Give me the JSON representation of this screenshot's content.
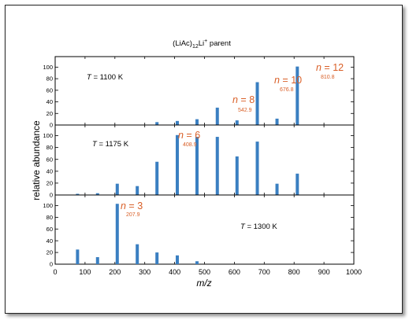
{
  "chart_data": {
    "type": "bar",
    "title": "(LiAc)12Li+ parent",
    "title_parts": {
      "base": "(LiAc)",
      "sub": "12",
      "mid": "Li",
      "sup": "+",
      "tail": " parent"
    },
    "xlabel": "m/z",
    "ylabel": "relative abundance",
    "xlim": [
      0,
      1000
    ],
    "xticks": [
      0,
      100,
      200,
      300,
      400,
      500,
      600,
      700,
      800,
      900,
      1000
    ],
    "ylim": [
      0,
      110
    ],
    "yticks": [
      0,
      20,
      40,
      60,
      80,
      100
    ],
    "bar_color": "#3a7fc1",
    "annotation_color": "#d95f27",
    "panels": [
      {
        "name": "T = 1100 K",
        "temp_var": "T",
        "temp_text": " = 1100 K",
        "x": [
          74.9,
          141.9,
          207.9,
          274.9,
          340.9,
          408.9,
          474.9,
          542.9,
          608.9,
          676.8,
          742.8,
          810.8
        ],
        "values": [
          0,
          0,
          0,
          0,
          5,
          7,
          10,
          30,
          8,
          74,
          11,
          101
        ],
        "annotations": [
          {
            "n": "n = 8",
            "mass": "542.9",
            "x": 542.9
          },
          {
            "n": "n = 10",
            "mass": "676.8",
            "x": 676.8
          },
          {
            "n": "n = 12",
            "mass": "810.8",
            "x": 810.8
          }
        ]
      },
      {
        "name": "T = 1175 K",
        "temp_var": "T",
        "temp_text": " = 1175 K",
        "x": [
          74.9,
          141.9,
          207.9,
          274.9,
          340.9,
          408.9,
          474.9,
          542.9,
          608.9,
          676.8,
          742.8,
          810.8
        ],
        "values": [
          2,
          3,
          19,
          15,
          56,
          101,
          98,
          98,
          65,
          90,
          19,
          36
        ],
        "annotations": [
          {
            "n": "n = 6",
            "mass": "408.9",
            "x": 408.9
          }
        ]
      },
      {
        "name": "T = 1300 K",
        "temp_var": "T",
        "temp_text": " = 1300 K",
        "x": [
          74.9,
          141.9,
          207.9,
          274.9,
          340.9,
          408.9,
          474.9,
          542.9,
          608.9,
          676.8,
          742.8,
          810.8
        ],
        "values": [
          25,
          12,
          103,
          34,
          20,
          15,
          5,
          0,
          0,
          0,
          0,
          0
        ],
        "annotations": [
          {
            "n": "n = 3",
            "mass": "207.9",
            "x": 207.9
          }
        ]
      }
    ]
  }
}
